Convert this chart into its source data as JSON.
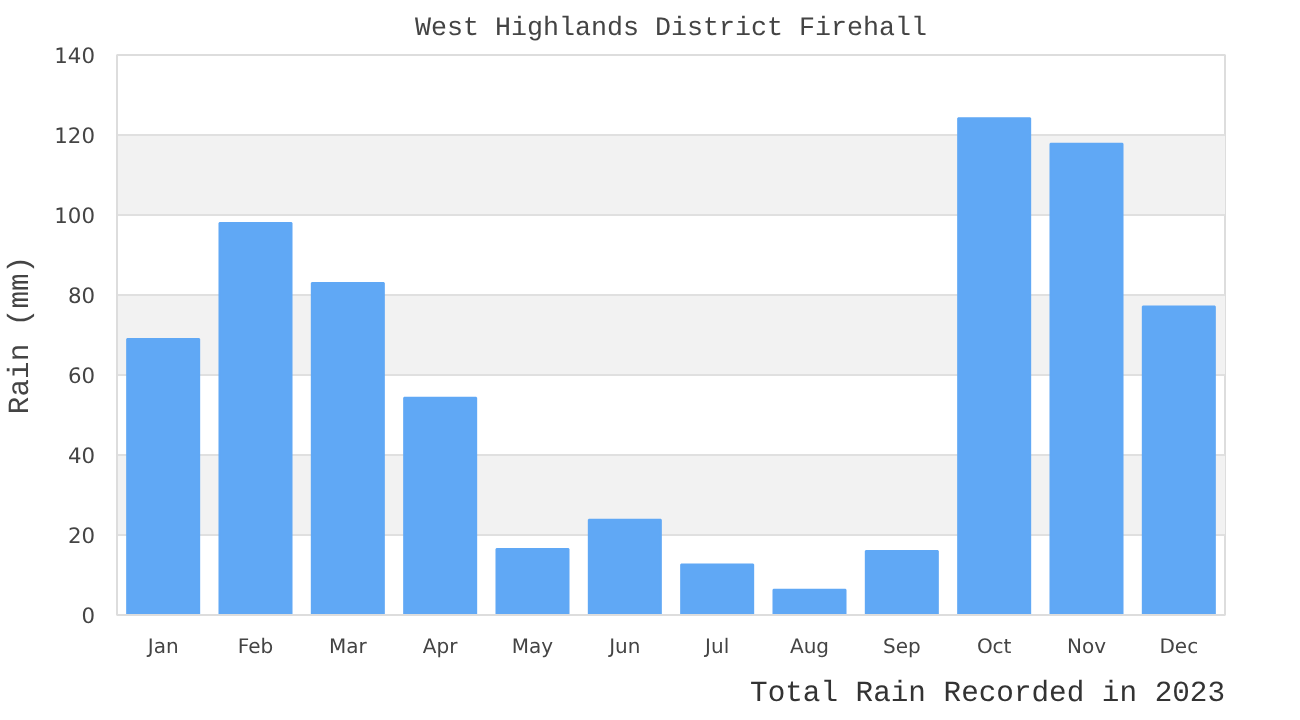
{
  "chart_data": {
    "type": "bar",
    "title": "West Highlands District Firehall",
    "xlabel": "Total Rain Recorded in 2023",
    "ylabel": "Rain (mm)",
    "categories": [
      "Jan",
      "Feb",
      "Mar",
      "Apr",
      "May",
      "Jun",
      "Jul",
      "Aug",
      "Sep",
      "Oct",
      "Nov",
      "Dec"
    ],
    "values": [
      69,
      98,
      83,
      54.3,
      16.5,
      23.8,
      12.6,
      6.3,
      16,
      124.2,
      117.8,
      77.1
    ],
    "color": "#60a8f5",
    "ylim": [
      0,
      140
    ],
    "yticks": [
      0,
      20,
      40,
      60,
      80,
      100,
      120,
      140
    ],
    "grid": "y"
  }
}
